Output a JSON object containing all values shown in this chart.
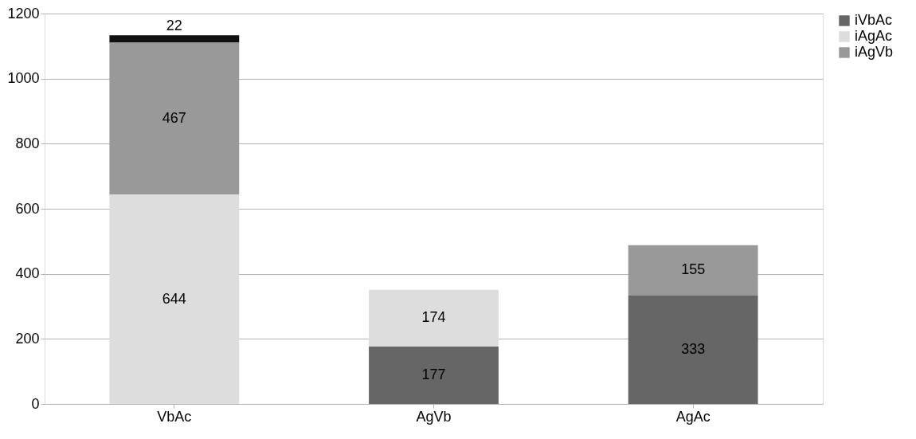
{
  "chart_data": {
    "type": "bar",
    "stacked": true,
    "categories": [
      "VbAc",
      "AgVb",
      "AgAc"
    ],
    "series": [
      {
        "name": "iVbAc",
        "color": "#666666",
        "values": [
          null,
          177,
          333
        ]
      },
      {
        "name": "iAgAc",
        "color": "#dddddd",
        "values": [
          644,
          174,
          null
        ]
      },
      {
        "name": "iAgVb",
        "color": "#999999",
        "values": [
          467,
          null,
          155
        ]
      },
      {
        "color": "#111111",
        "values": [
          22,
          null,
          null
        ]
      }
    ],
    "ylim": [
      0,
      1200
    ],
    "yticks": [
      0,
      200,
      400,
      600,
      800,
      1000,
      1200
    ],
    "grid": "y",
    "legend": "right",
    "data_labels": true
  }
}
